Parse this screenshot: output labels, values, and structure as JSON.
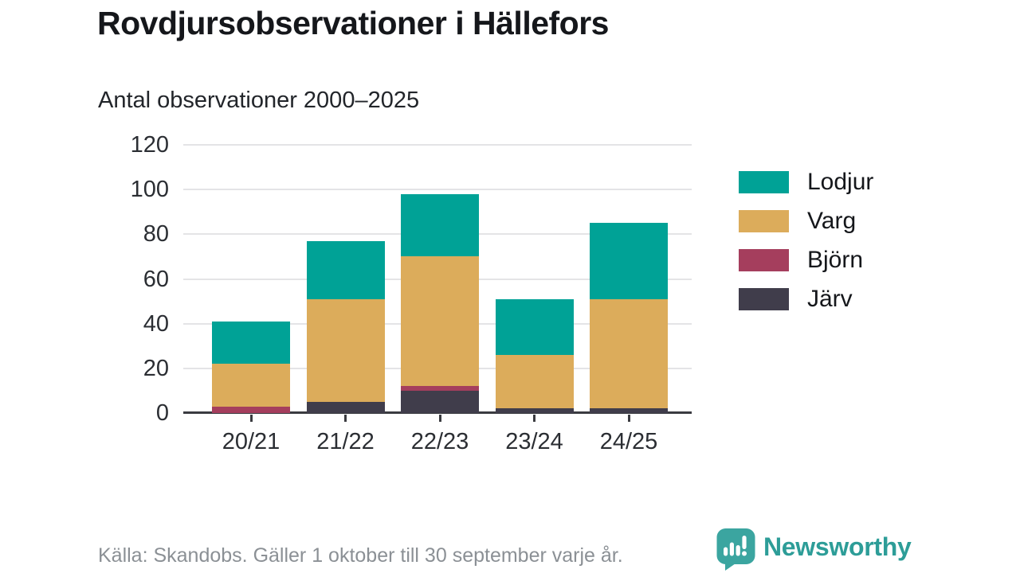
{
  "header": {
    "title": "Rovdjursobservationer i Hällefors",
    "subtitle": "Antal observationer 2000–2025"
  },
  "footer": {
    "source": "Källa: Skandobs. Gäller 1 oktober till 30 september varje år.",
    "logo_text": "Newsworthy"
  },
  "colors": {
    "lodjur": "#00A296",
    "varg": "#DCAC5B",
    "bjorn": "#A53E5D",
    "jarv": "#403D4B",
    "axis": "#3a3b40",
    "gridline": "#e4e4e6",
    "footer_text": "#8b9095",
    "logo_teal": "#3BA5A0"
  },
  "chart_data": {
    "type": "bar",
    "stacked": true,
    "title": "Rovdjursobservationer i Hällefors",
    "subtitle": "Antal observationer 2000–2025",
    "categories": [
      "20/21",
      "21/22",
      "22/23",
      "23/24",
      "24/25"
    ],
    "series": [
      {
        "name": "Järv",
        "color": "#403D4B",
        "values": [
          0,
          5,
          10,
          2,
          2
        ]
      },
      {
        "name": "Björn",
        "color": "#A53E5D",
        "values": [
          3,
          0,
          2,
          0,
          0
        ]
      },
      {
        "name": "Varg",
        "color": "#DCAC5B",
        "values": [
          19,
          46,
          58,
          24,
          49
        ]
      },
      {
        "name": "Lodjur",
        "color": "#00A296",
        "values": [
          19,
          26,
          28,
          25,
          34
        ]
      }
    ],
    "totals": [
      41,
      77,
      98,
      51,
      85
    ],
    "xlabel": "",
    "ylabel": "",
    "ylim": [
      0,
      120
    ],
    "yticks": [
      0,
      20,
      40,
      60,
      80,
      100,
      120
    ],
    "grid": true,
    "legend": [
      "Lodjur",
      "Varg",
      "Björn",
      "Järv"
    ],
    "legend_position": "right"
  }
}
